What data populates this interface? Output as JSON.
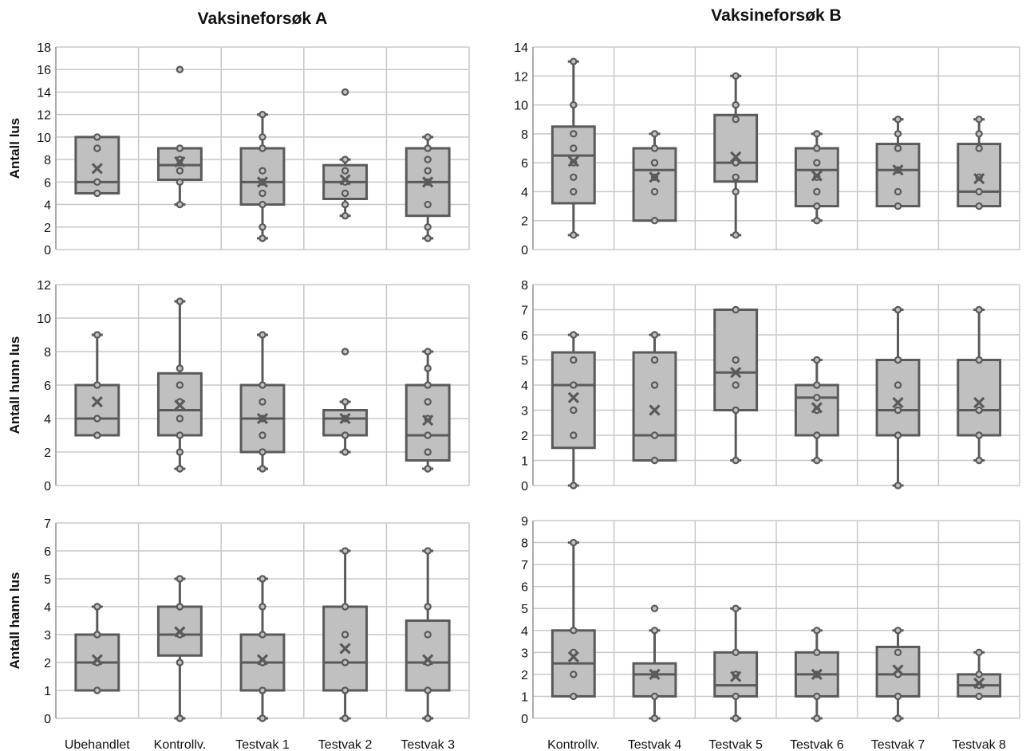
{
  "colors": {
    "box_fill": "#c0c0c0",
    "stroke": "#5a5a5a",
    "grid": "#c8c8c8",
    "text": "#111111"
  },
  "chart_data": [
    {
      "type": "box",
      "title": "Vaksineforsøk A",
      "ylabel": "Antall lus",
      "ylim": [
        0,
        18
      ],
      "ystep": 2,
      "grid": true,
      "categories": [
        "Ubehandlet",
        "Kontrollv.",
        "Testvak 1",
        "Testvak 2",
        "Testvak 3"
      ],
      "boxes": [
        {
          "min": 5,
          "q1": 5,
          "median": 6,
          "q3": 10,
          "max": 10,
          "mean": 7.2,
          "points": [
            10,
            9,
            6,
            5
          ]
        },
        {
          "min": 4,
          "q1": 6.2,
          "median": 7.5,
          "q3": 9,
          "max": 9,
          "mean": 7.8,
          "points": [
            16,
            9,
            8,
            7,
            6,
            4
          ],
          "outliers": [
            16
          ]
        },
        {
          "min": 1,
          "q1": 4,
          "median": 6,
          "q3": 9,
          "max": 12,
          "mean": 6,
          "points": [
            12,
            10,
            9,
            7,
            6,
            5,
            4,
            2,
            1
          ]
        },
        {
          "min": 3,
          "q1": 4.5,
          "median": 6,
          "q3": 7.5,
          "max": 8,
          "mean": 6.2,
          "points": [
            14,
            8,
            7,
            6,
            5,
            4,
            3
          ],
          "outliers": [
            14
          ]
        },
        {
          "min": 1,
          "q1": 3,
          "median": 6,
          "q3": 9,
          "max": 10,
          "mean": 6,
          "points": [
            10,
            9,
            8,
            7,
            6,
            4,
            2,
            1
          ]
        }
      ]
    },
    {
      "type": "box",
      "title": "Vaksineforsøk B",
      "ylabel": "",
      "ylim": [
        0,
        14
      ],
      "ystep": 2,
      "grid": true,
      "categories": [
        "Kontrollv.",
        "Testvak 4",
        "Testvak 5",
        "Testvak 6",
        "Testvak 7",
        "Testvak 8"
      ],
      "boxes": [
        {
          "min": 1,
          "q1": 3.2,
          "median": 6.5,
          "q3": 8.5,
          "max": 13,
          "mean": 6.1,
          "points": [
            13,
            10,
            8,
            7,
            6,
            5,
            4,
            1
          ]
        },
        {
          "min": 2,
          "q1": 2,
          "median": 5.5,
          "q3": 7,
          "max": 8,
          "mean": 5,
          "points": [
            8,
            7,
            6,
            5,
            4,
            2
          ]
        },
        {
          "min": 1,
          "q1": 4.7,
          "median": 6,
          "q3": 9.3,
          "max": 12,
          "mean": 6.4,
          "points": [
            12,
            10,
            9,
            6,
            5,
            4,
            1
          ]
        },
        {
          "min": 2,
          "q1": 3,
          "median": 5.5,
          "q3": 7,
          "max": 8,
          "mean": 5.1,
          "points": [
            8,
            7,
            6,
            5,
            4,
            3,
            2
          ]
        },
        {
          "min": 3,
          "q1": 3,
          "median": 5.5,
          "q3": 7.3,
          "max": 9,
          "mean": 5.5,
          "points": [
            9,
            8,
            7,
            5.5,
            4,
            3
          ]
        },
        {
          "min": 3,
          "q1": 3,
          "median": 4,
          "q3": 7.3,
          "max": 9,
          "mean": 4.9,
          "points": [
            9,
            8,
            7,
            5,
            4,
            3
          ]
        }
      ]
    },
    {
      "type": "box",
      "title": "",
      "ylabel": "Antall hunn lus",
      "ylim": [
        0,
        12
      ],
      "ystep": 2,
      "grid": true,
      "categories": [
        "Ubehandlet",
        "Kontrollv.",
        "Testvak 1",
        "Testvak 2",
        "Testvak 3"
      ],
      "boxes": [
        {
          "min": 3,
          "q1": 3,
          "median": 4,
          "q3": 6,
          "max": 9,
          "mean": 5,
          "points": [
            9,
            6,
            4,
            3
          ]
        },
        {
          "min": 1,
          "q1": 3,
          "median": 4.5,
          "q3": 6.7,
          "max": 11,
          "mean": 4.8,
          "points": [
            11,
            7,
            6,
            5,
            4,
            3,
            2,
            1
          ]
        },
        {
          "min": 1,
          "q1": 2,
          "median": 4,
          "q3": 6,
          "max": 9,
          "mean": 4,
          "points": [
            9,
            6,
            5,
            4,
            3,
            2,
            1
          ]
        },
        {
          "min": 2,
          "q1": 3,
          "median": 4,
          "q3": 4.5,
          "max": 5,
          "mean": 4,
          "points": [
            8,
            5,
            4,
            3,
            2
          ],
          "outliers": [
            8
          ]
        },
        {
          "min": 1,
          "q1": 1.5,
          "median": 3,
          "q3": 6,
          "max": 8,
          "mean": 3.9,
          "points": [
            8,
            7,
            6,
            5,
            4,
            3,
            2,
            1
          ]
        }
      ]
    },
    {
      "type": "box",
      "title": "",
      "ylabel": "",
      "ylim": [
        0,
        8
      ],
      "ystep": 1,
      "grid": true,
      "categories": [
        "Kontrollv.",
        "Testvak 4",
        "Testvak 5",
        "Testvak 6",
        "Testvak 7",
        "Testvak 8"
      ],
      "boxes": [
        {
          "min": 0,
          "q1": 1.5,
          "median": 4,
          "q3": 5.3,
          "max": 6,
          "mean": 3.5,
          "points": [
            6,
            5,
            4,
            3,
            2,
            0
          ]
        },
        {
          "min": 1,
          "q1": 1,
          "median": 2,
          "q3": 5.3,
          "max": 6,
          "mean": 3,
          "points": [
            6,
            5,
            4,
            2,
            1
          ]
        },
        {
          "min": 1,
          "q1": 3,
          "median": 4.5,
          "q3": 7,
          "max": 7,
          "mean": 4.5,
          "points": [
            7,
            5,
            4,
            3,
            1
          ]
        },
        {
          "min": 1,
          "q1": 2,
          "median": 3.5,
          "q3": 4,
          "max": 5,
          "mean": 3.1,
          "points": [
            5,
            4,
            3.5,
            3,
            2,
            1
          ]
        },
        {
          "min": 0,
          "q1": 2,
          "median": 3,
          "q3": 5,
          "max": 7,
          "mean": 3.3,
          "points": [
            7,
            5,
            4,
            3,
            2,
            0
          ]
        },
        {
          "min": 1,
          "q1": 2,
          "median": 3,
          "q3": 5,
          "max": 7,
          "mean": 3.3,
          "points": [
            7,
            5,
            3,
            2,
            1
          ]
        }
      ]
    },
    {
      "type": "box",
      "title": "",
      "ylabel": "Antall hann lus",
      "ylim": [
        0,
        7
      ],
      "ystep": 1,
      "grid": true,
      "categories": [
        "Ubehandlet",
        "Kontrollv.",
        "Testvak 1",
        "Testvak 2",
        "Testvak 3"
      ],
      "boxes": [
        {
          "min": 1,
          "q1": 1,
          "median": 2,
          "q3": 3,
          "max": 4,
          "mean": 2.1,
          "points": [
            4,
            3,
            2,
            1
          ]
        },
        {
          "min": 0,
          "q1": 2.25,
          "median": 3,
          "q3": 4,
          "max": 5,
          "mean": 3.1,
          "points": [
            5,
            4,
            3,
            2,
            0
          ]
        },
        {
          "min": 0,
          "q1": 1,
          "median": 2,
          "q3": 3,
          "max": 5,
          "mean": 2.1,
          "points": [
            5,
            4,
            3,
            2,
            1,
            0
          ]
        },
        {
          "min": 0,
          "q1": 1,
          "median": 2,
          "q3": 4,
          "max": 6,
          "mean": 2.5,
          "points": [
            6,
            4,
            3,
            2,
            1,
            0
          ]
        },
        {
          "min": 0,
          "q1": 1,
          "median": 2,
          "q3": 3.5,
          "max": 6,
          "mean": 2.1,
          "points": [
            6,
            4,
            3,
            2,
            1,
            0
          ]
        }
      ]
    },
    {
      "type": "box",
      "title": "",
      "ylabel": "",
      "ylim": [
        0,
        9
      ],
      "ystep": 1,
      "grid": true,
      "categories": [
        "Kontrollv.",
        "Testvak 4",
        "Testvak 5",
        "Testvak 6",
        "Testvak 7",
        "Testvak 8"
      ],
      "boxes": [
        {
          "min": 1,
          "q1": 1,
          "median": 2.5,
          "q3": 4,
          "max": 8,
          "mean": 2.8,
          "points": [
            8,
            4,
            3,
            2,
            1
          ]
        },
        {
          "min": 0,
          "q1": 1,
          "median": 2,
          "q3": 2.5,
          "max": 4,
          "mean": 2,
          "points": [
            5,
            4,
            2,
            1,
            0
          ],
          "outliers": [
            5
          ]
        },
        {
          "min": 0,
          "q1": 1,
          "median": 1.5,
          "q3": 3,
          "max": 5,
          "mean": 1.9,
          "points": [
            5,
            3,
            2,
            1,
            0
          ]
        },
        {
          "min": 0,
          "q1": 1,
          "median": 2,
          "q3": 3,
          "max": 4,
          "mean": 2,
          "points": [
            4,
            3,
            2,
            1,
            0
          ]
        },
        {
          "min": 0,
          "q1": 1,
          "median": 2,
          "q3": 3.25,
          "max": 4,
          "mean": 2.2,
          "points": [
            4,
            3,
            2,
            1,
            0
          ]
        },
        {
          "min": 1,
          "q1": 1,
          "median": 1.5,
          "q3": 2,
          "max": 3,
          "mean": 1.6,
          "points": [
            3,
            2,
            1.5,
            1
          ]
        }
      ]
    }
  ]
}
